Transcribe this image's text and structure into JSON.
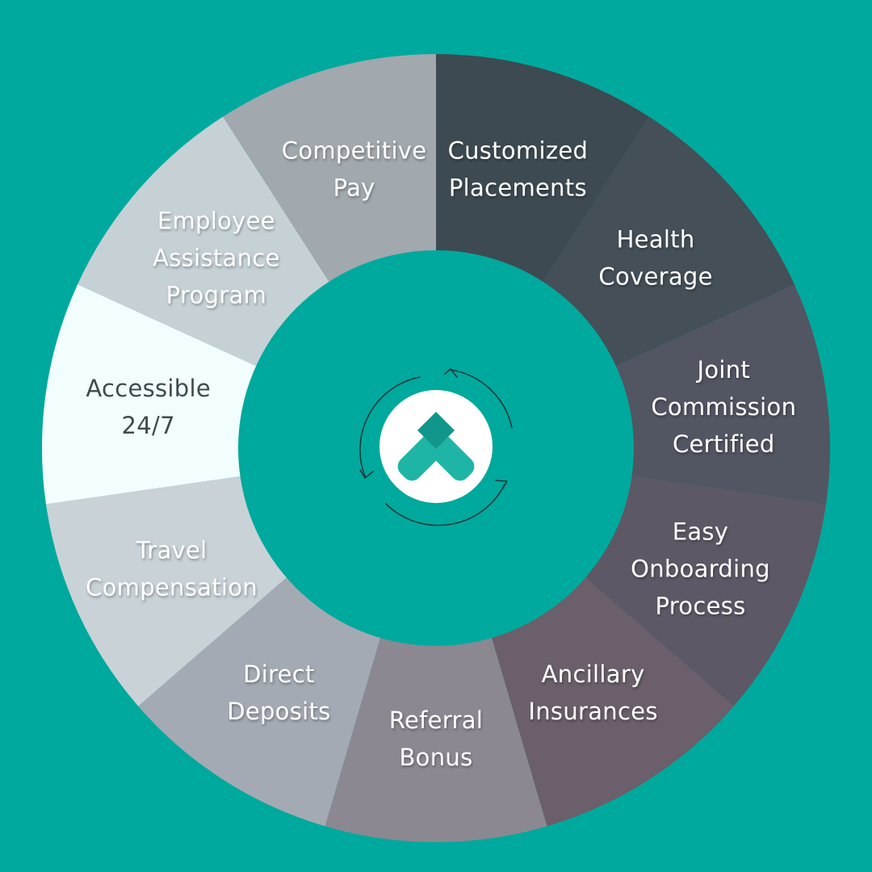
{
  "diagram": {
    "background_color": "#00a99d",
    "center_color": "#00a99d",
    "segments": [
      {
        "lines": [
          "Customized",
          "Placements"
        ],
        "color": "#3d4a51",
        "text": "light"
      },
      {
        "lines": [
          "Health",
          "Coverage"
        ],
        "color": "#444f58",
        "text": "light"
      },
      {
        "lines": [
          "Joint",
          "Commission",
          "Certified"
        ],
        "color": "#525562",
        "text": "light"
      },
      {
        "lines": [
          "Easy",
          "Onboarding",
          "Process"
        ],
        "color": "#5d5865",
        "text": "light"
      },
      {
        "lines": [
          "Ancillary",
          "Insurances"
        ],
        "color": "#6a5f6a",
        "text": "light"
      },
      {
        "lines": [
          "Referral",
          "Bonus"
        ],
        "color": "#8b8892",
        "text": "light"
      },
      {
        "lines": [
          "Direct",
          "Deposits"
        ],
        "color": "#a4aab3",
        "text": "light"
      },
      {
        "lines": [
          "Travel",
          "Compensation"
        ],
        "color": "#c9d2d7",
        "text": "light"
      },
      {
        "lines": [
          "Accessible",
          "24/7"
        ],
        "color": "#f2fefe",
        "text": "dark"
      },
      {
        "lines": [
          "Employee",
          "Assistance",
          "Program"
        ],
        "color": "#c6d1d6",
        "text": "light"
      },
      {
        "lines": [
          "Competitive",
          "Pay"
        ],
        "color": "#a1a8ae",
        "text": "light"
      }
    ],
    "logo": {
      "icon": "chevron-up-logo-icon",
      "circle_color": "#ffffff",
      "mark_color": "#1fb5a6",
      "mark_overlap_color": "#10968a",
      "arrows_icon": "circular-arrows-icon",
      "arrows_color": "#1d3a3c"
    }
  }
}
